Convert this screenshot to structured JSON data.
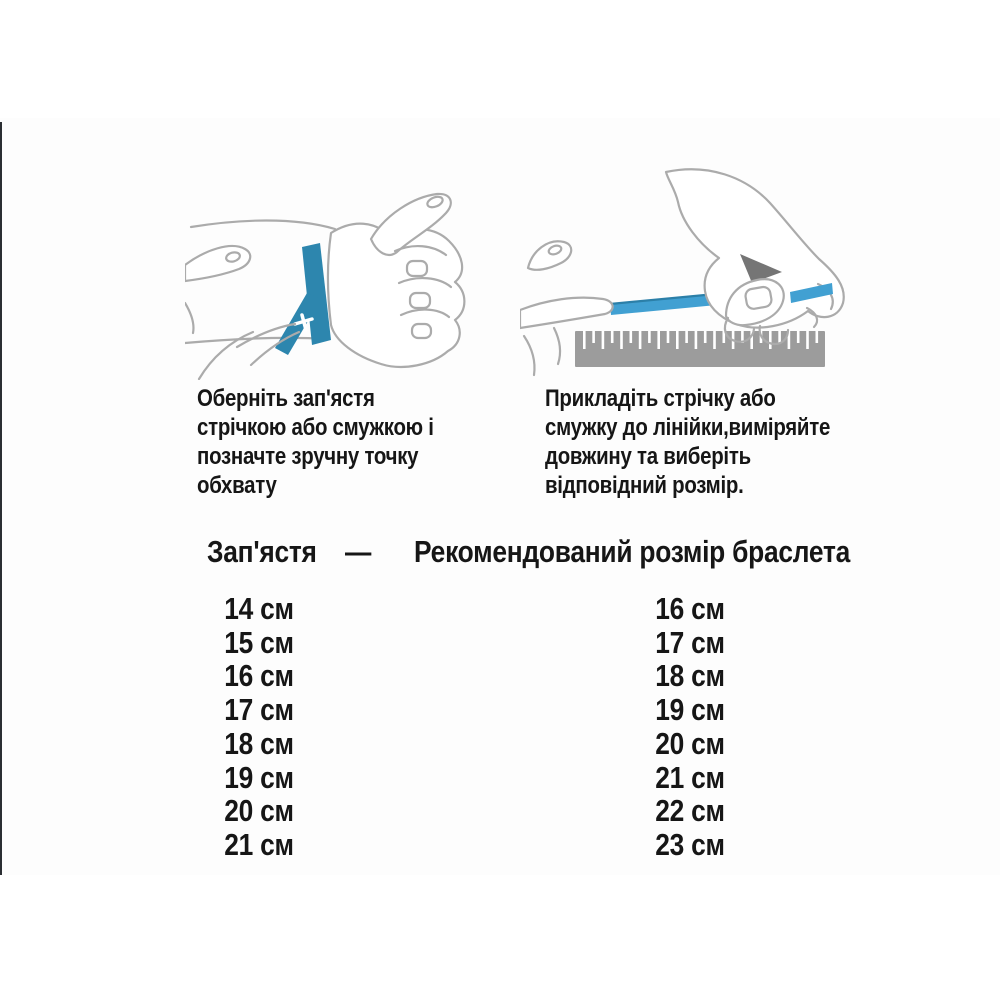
{
  "colors": {
    "text": "#161616",
    "left_ribbon": "#2d86ae",
    "right_ribbon": "#41a0d2",
    "right_ribbon_edge": "#2b7fa8",
    "ruler": "#9c9c9c",
    "hand_outline": "#ababab"
  },
  "illustrations": {
    "left": {
      "name": "wrap-ribbon-around-wrist"
    },
    "right": {
      "name": "measure-ribbon-with-ruler"
    }
  },
  "instructions": {
    "left": {
      "lines": [
        "Оберніть зап'ястя",
        "стрічкою або смужкою і",
        "позначте зручну точку",
        "обхвату"
      ]
    },
    "right": {
      "lines": [
        "Прикладіть стрічку або",
        "смужку до лінійки,виміряйте",
        "довжину та виберіть",
        "відповідний розмір."
      ]
    }
  },
  "size_table": {
    "header": {
      "wrist_label": "Зап'ястя",
      "separator": "—",
      "bracelet_label": "Рекомендований розмір браслета"
    },
    "rows": [
      {
        "wrist": "14 см",
        "bracelet": "16 см"
      },
      {
        "wrist": "15 см",
        "bracelet": "17 см"
      },
      {
        "wrist": "16 см",
        "bracelet": "18 см"
      },
      {
        "wrist": "17 см",
        "bracelet": "19 см"
      },
      {
        "wrist": "18 см",
        "bracelet": "20 см"
      },
      {
        "wrist": "19 см",
        "bracelet": "21 см"
      },
      {
        "wrist": "20 см",
        "bracelet": "22 см"
      },
      {
        "wrist": "21 см",
        "bracelet": "23 см"
      }
    ]
  }
}
